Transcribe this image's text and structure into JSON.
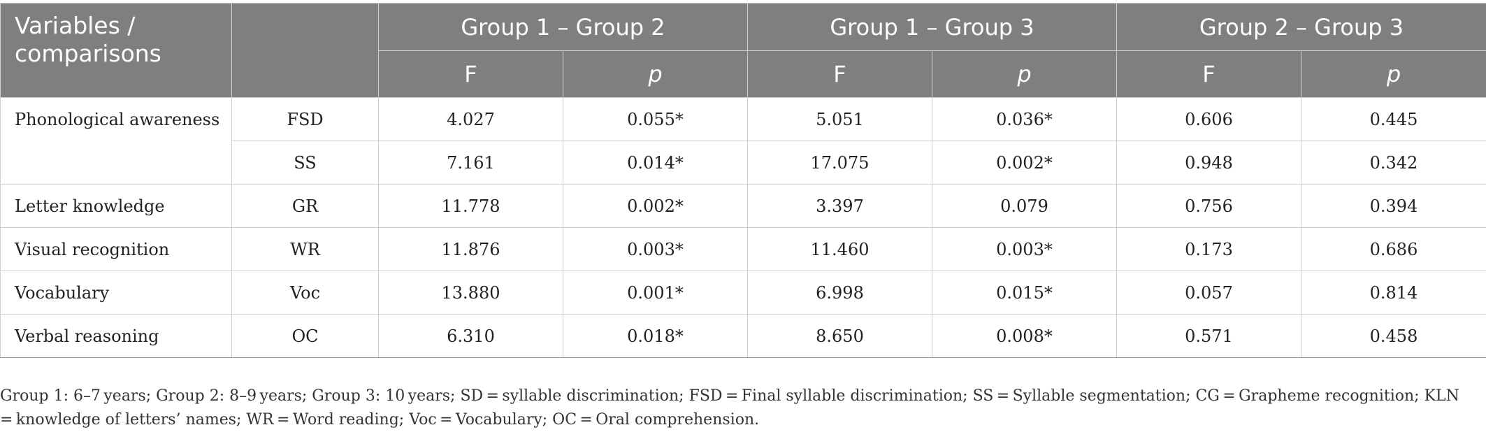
{
  "table": {
    "header": {
      "variables_label": "Variables / comparisons",
      "groups": [
        "Group 1 – Group 2",
        "Group 1 – Group 3",
        "Group 2 – Group 3"
      ],
      "f_label": "F",
      "p_label": "p"
    },
    "variables": [
      "Phonological awareness",
      "Letter knowledge",
      "Visual recognition",
      "Vocabulary",
      "Verbal reasoning"
    ],
    "rows": [
      {
        "measure": "FSD",
        "values": [
          "4.027",
          "0.055*",
          "5.051",
          "0.036*",
          "0.606",
          "0.445"
        ]
      },
      {
        "measure": "SS",
        "values": [
          "7.161",
          "0.014*",
          "17.075",
          "0.002*",
          "0.948",
          "0.342"
        ]
      },
      {
        "measure": "GR",
        "values": [
          "11.778",
          "0.002*",
          "3.397",
          "0.079",
          "0.756",
          "0.394"
        ]
      },
      {
        "measure": "WR",
        "values": [
          "11.876",
          "0.003*",
          "11.460",
          "0.003*",
          "0.173",
          "0.686"
        ]
      },
      {
        "measure": "Voc",
        "values": [
          "13.880",
          "0.001*",
          "6.998",
          "0.015*",
          "0.057",
          "0.814"
        ]
      },
      {
        "measure": "OC",
        "values": [
          "6.310",
          "0.018*",
          "8.650",
          "0.008*",
          "0.571",
          "0.458"
        ]
      }
    ]
  },
  "footnote": "Group 1: 6–7 years; Group 2: 8–9 years; Group 3: 10 years; SD = syllable discrimination; FSD = Final syllable discrimination; SS = Syllable segmentation; CG = Grapheme recognition; KLN = knowledge of letters’ names; WR = Word reading; Voc = Vocabulary; OC = Oral comprehension.",
  "colors": {
    "header_bg": "#7f7f7f",
    "header_text": "#ffffff",
    "grid": "#cfcfcf"
  }
}
